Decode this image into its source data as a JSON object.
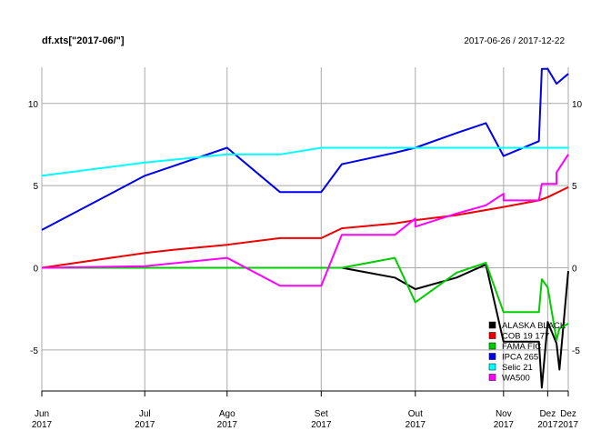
{
  "chart_data": {
    "type": "line",
    "title": "df.xts[\"2017-06/\"]",
    "date_range_label": "2017-06-26 / 2017-12-22",
    "xlabel": "",
    "ylabel": "",
    "xlim": [
      "2017-06-26",
      "2017-12-22"
    ],
    "ylim": [
      -7.5,
      12.2
    ],
    "yticks": [
      -5,
      0,
      5,
      10
    ],
    "grid": true,
    "legend_position": "bottom-right",
    "x_ticks": [
      {
        "date": "2017-06-26",
        "month": "Jun",
        "year": "2017"
      },
      {
        "date": "2017-07-31",
        "month": "Jul",
        "year": "2017"
      },
      {
        "date": "2017-08-28",
        "month": "Ago",
        "year": "2017"
      },
      {
        "date": "2017-09-29",
        "month": "Set",
        "year": "2017"
      },
      {
        "date": "2017-10-31",
        "month": "Out",
        "year": "2017"
      },
      {
        "date": "2017-11-30",
        "month": "Nov",
        "year": "2017"
      },
      {
        "date": "2017-12-15",
        "month": "Dez",
        "year": "2017"
      },
      {
        "date": "2017-12-22",
        "month": "Dez",
        "year": "2017"
      }
    ],
    "series": [
      {
        "name": "ALASKA BLACK",
        "color": "#000000",
        "points": [
          [
            "2017-06-26",
            0
          ],
          [
            "2017-10-06",
            0
          ],
          [
            "2017-10-24",
            -0.6
          ],
          [
            "2017-10-31",
            -1.3
          ],
          [
            "2017-11-14",
            -0.6
          ],
          [
            "2017-11-24",
            0.2
          ],
          [
            "2017-11-30",
            -4.5
          ],
          [
            "2017-12-12",
            -4.5
          ],
          [
            "2017-12-13",
            -7.3
          ],
          [
            "2017-12-15",
            -3.3
          ],
          [
            "2017-12-18",
            -4.6
          ],
          [
            "2017-12-19",
            -6.2
          ],
          [
            "2017-12-22",
            -0.2
          ]
        ]
      },
      {
        "name": "COB 19 177",
        "color": "#ee0000",
        "points": [
          [
            "2017-06-26",
            0
          ],
          [
            "2017-07-31",
            0.9
          ],
          [
            "2017-08-10",
            1.1
          ],
          [
            "2017-08-28",
            1.4
          ],
          [
            "2017-09-15",
            1.8
          ],
          [
            "2017-09-29",
            1.8
          ],
          [
            "2017-10-06",
            2.4
          ],
          [
            "2017-10-24",
            2.7
          ],
          [
            "2017-10-31",
            2.9
          ],
          [
            "2017-11-14",
            3.2
          ],
          [
            "2017-11-30",
            3.7
          ],
          [
            "2017-12-12",
            4.1
          ],
          [
            "2017-12-15",
            4.3
          ],
          [
            "2017-12-22",
            4.9
          ]
        ]
      },
      {
        "name": "FAMA FIC",
        "color": "#00cc00",
        "points": [
          [
            "2017-06-26",
            0
          ],
          [
            "2017-10-06",
            0
          ],
          [
            "2017-10-24",
            0.6
          ],
          [
            "2017-10-31",
            -2.1
          ],
          [
            "2017-11-14",
            -0.3
          ],
          [
            "2017-11-24",
            0.3
          ],
          [
            "2017-11-30",
            -2.7
          ],
          [
            "2017-12-12",
            -2.7
          ],
          [
            "2017-12-13",
            -0.7
          ],
          [
            "2017-12-15",
            -1.2
          ],
          [
            "2017-12-18",
            -4.4
          ],
          [
            "2017-12-19",
            -3.7
          ],
          [
            "2017-12-22",
            -3.4
          ]
        ]
      },
      {
        "name": "IPCA 265",
        "color": "#0000ee",
        "points": [
          [
            "2017-06-26",
            2.3
          ],
          [
            "2017-07-31",
            5.6
          ],
          [
            "2017-08-28",
            7.3
          ],
          [
            "2017-09-15",
            4.6
          ],
          [
            "2017-09-29",
            4.6
          ],
          [
            "2017-10-06",
            6.3
          ],
          [
            "2017-10-24",
            7.0
          ],
          [
            "2017-10-31",
            7.3
          ],
          [
            "2017-11-14",
            8.2
          ],
          [
            "2017-11-24",
            8.8
          ],
          [
            "2017-11-30",
            6.8
          ],
          [
            "2017-12-12",
            7.7
          ],
          [
            "2017-12-13",
            12.1
          ],
          [
            "2017-12-15",
            12.1
          ],
          [
            "2017-12-18",
            11.2
          ],
          [
            "2017-12-22",
            11.8
          ]
        ]
      },
      {
        "name": "Selic 21",
        "color": "#00ffff",
        "points": [
          [
            "2017-06-26",
            5.6
          ],
          [
            "2017-07-31",
            6.4
          ],
          [
            "2017-08-28",
            6.9
          ],
          [
            "2017-09-15",
            6.9
          ],
          [
            "2017-09-29",
            7.3
          ],
          [
            "2017-10-31",
            7.3
          ],
          [
            "2017-11-30",
            7.3
          ],
          [
            "2017-12-22",
            7.3
          ]
        ]
      },
      {
        "name": "WA500",
        "color": "#ff00ff",
        "points": [
          [
            "2017-06-26",
            0
          ],
          [
            "2017-07-31",
            0.1
          ],
          [
            "2017-08-28",
            0.6
          ],
          [
            "2017-09-15",
            -1.1
          ],
          [
            "2017-09-29",
            -1.1
          ],
          [
            "2017-10-06",
            2.0
          ],
          [
            "2017-10-24",
            2.0
          ],
          [
            "2017-10-31",
            3.0
          ],
          [
            "2017-10-31",
            2.5
          ],
          [
            "2017-11-14",
            3.3
          ],
          [
            "2017-11-24",
            3.8
          ],
          [
            "2017-11-30",
            4.5
          ],
          [
            "2017-11-30",
            4.1
          ],
          [
            "2017-12-12",
            4.1
          ],
          [
            "2017-12-13",
            5.1
          ],
          [
            "2017-12-18",
            5.1
          ],
          [
            "2017-12-18",
            5.8
          ],
          [
            "2017-12-22",
            6.9
          ]
        ]
      }
    ]
  }
}
